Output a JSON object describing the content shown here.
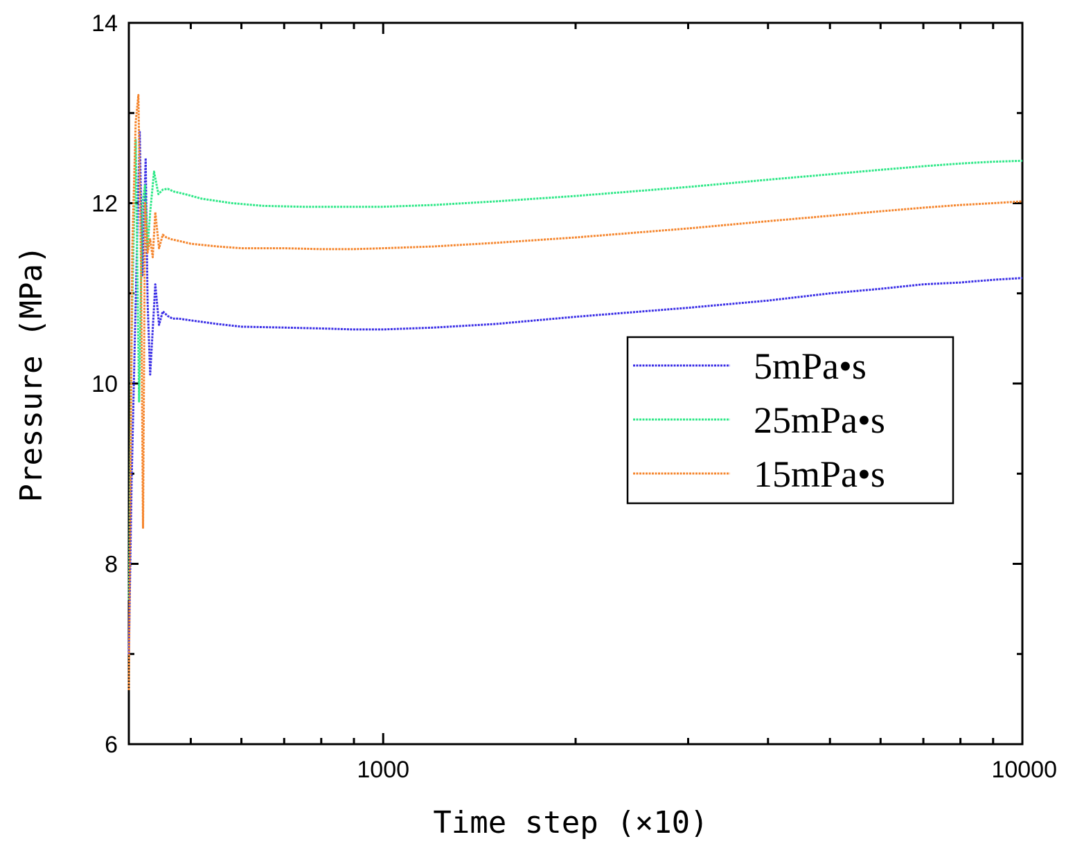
{
  "chart_data": {
    "type": "line",
    "xlabel": "Time step (×10)",
    "ylabel": "Pressure (MPa)",
    "xscale": "log",
    "xlim": [
      400,
      10000
    ],
    "ylim": [
      6,
      14
    ],
    "xticks": [
      {
        "value": 1000,
        "label": "1000"
      },
      {
        "value": 10000,
        "label": "10000"
      }
    ],
    "yticks": [
      {
        "value": 6,
        "label": "6"
      },
      {
        "value": 8,
        "label": "8"
      },
      {
        "value": 10,
        "label": "10"
      },
      {
        "value": 12,
        "label": "12"
      },
      {
        "value": 14,
        "label": "14"
      }
    ],
    "legend_position": "right",
    "grid": false,
    "series": [
      {
        "name": "5mPa•s",
        "color": "#3a2ee6",
        "x": [
          400,
          404,
          410,
          416,
          420,
          425,
          428,
          432,
          436,
          440,
          446,
          452,
          460,
          468,
          478,
          500,
          550,
          600,
          700,
          800,
          900,
          1000,
          1200,
          1500,
          2000,
          3000,
          4000,
          5000,
          6000,
          7000,
          8000,
          9000,
          10000
        ],
        "y": [
          7.0,
          8.9,
          10.9,
          12.8,
          11.2,
          12.5,
          10.9,
          10.1,
          10.6,
          11.1,
          10.65,
          10.8,
          10.75,
          10.72,
          10.72,
          10.7,
          10.66,
          10.63,
          10.62,
          10.61,
          10.6,
          10.6,
          10.62,
          10.66,
          10.74,
          10.84,
          10.92,
          11.0,
          11.05,
          11.1,
          11.12,
          11.15,
          11.17
        ]
      },
      {
        "name": "25mPa•s",
        "color": "#2fe888",
        "x": [
          400,
          404,
          410,
          415,
          420,
          424,
          428,
          432,
          438,
          445,
          452,
          460,
          470,
          490,
          520,
          580,
          650,
          750,
          850,
          1000,
          1200,
          1500,
          2000,
          3000,
          4000,
          5000,
          6000,
          7000,
          8000,
          9000,
          10000
        ],
        "y": [
          7.6,
          10.5,
          12.7,
          9.8,
          12.0,
          12.2,
          11.5,
          11.9,
          12.35,
          12.1,
          12.15,
          12.16,
          12.13,
          12.1,
          12.05,
          12.0,
          11.97,
          11.96,
          11.96,
          11.96,
          11.98,
          12.02,
          12.08,
          12.18,
          12.26,
          12.32,
          12.37,
          12.41,
          12.44,
          12.46,
          12.47
        ]
      },
      {
        "name": "15mPa•s",
        "color": "#f5862e",
        "x": [
          400,
          405,
          410,
          414,
          418,
          421,
          424,
          428,
          432,
          436,
          440,
          446,
          452,
          458,
          466,
          480,
          500,
          550,
          600,
          700,
          800,
          900,
          1000,
          1200,
          1500,
          2000,
          3000,
          4000,
          5000,
          6000,
          7000,
          8000,
          9000,
          10000
        ],
        "y": [
          6.6,
          11.5,
          12.9,
          13.2,
          11.3,
          8.4,
          12.0,
          11.45,
          11.6,
          11.4,
          11.9,
          11.5,
          11.65,
          11.62,
          11.6,
          11.58,
          11.55,
          11.52,
          11.5,
          11.5,
          11.49,
          11.49,
          11.5,
          11.52,
          11.56,
          11.62,
          11.72,
          11.8,
          11.86,
          11.91,
          11.95,
          11.98,
          12.0,
          12.02
        ]
      }
    ]
  }
}
